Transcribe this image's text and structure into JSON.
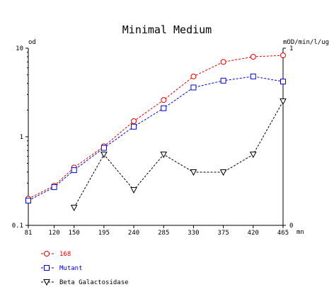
{
  "chart_data": {
    "type": "line",
    "title": "Minimal Medium",
    "x": [
      81,
      120,
      150,
      195,
      240,
      285,
      330,
      375,
      420,
      465
    ],
    "x_ticks": [
      "81",
      "120",
      "150",
      "195",
      "240",
      "285",
      "330",
      "375",
      "420",
      "465"
    ],
    "xlabel": "mn",
    "xlim": [
      81,
      465
    ],
    "y_left": {
      "label": "od",
      "scale": "log",
      "lim": [
        0.1,
        10
      ],
      "ticks": [
        "0.1",
        "1",
        "10"
      ]
    },
    "y_right": {
      "label": "mOD/min/l/ug",
      "scale": "linear",
      "lim": [
        0,
        1
      ],
      "ticks": [
        "0",
        "1"
      ]
    },
    "grid": false,
    "legend_position": "bottom-left",
    "series": [
      {
        "name": "168",
        "axis": "left",
        "color": "#dd0000",
        "marker": "circle",
        "x": [
          81,
          120,
          150,
          195,
          240,
          285,
          330,
          375,
          420,
          465
        ],
        "values": [
          0.2,
          0.28,
          0.45,
          0.78,
          1.5,
          2.6,
          4.8,
          7.0,
          8.0,
          8.3
        ]
      },
      {
        "name": "Mutant",
        "axis": "left",
        "color": "#0000cc",
        "marker": "square",
        "x": [
          81,
          120,
          150,
          195,
          240,
          285,
          330,
          375,
          420,
          465
        ],
        "values": [
          0.19,
          0.27,
          0.42,
          0.75,
          1.3,
          2.1,
          3.6,
          4.3,
          4.8,
          4.2
        ]
      },
      {
        "name": "Beta Galactosidase",
        "axis": "right",
        "color": "#000000",
        "marker": "triangle-down",
        "x": [
          150,
          195,
          240,
          285,
          330,
          375,
          420,
          465
        ],
        "values": [
          0.1,
          0.4,
          0.2,
          0.4,
          0.3,
          0.3,
          0.4,
          0.7
        ]
      }
    ]
  }
}
